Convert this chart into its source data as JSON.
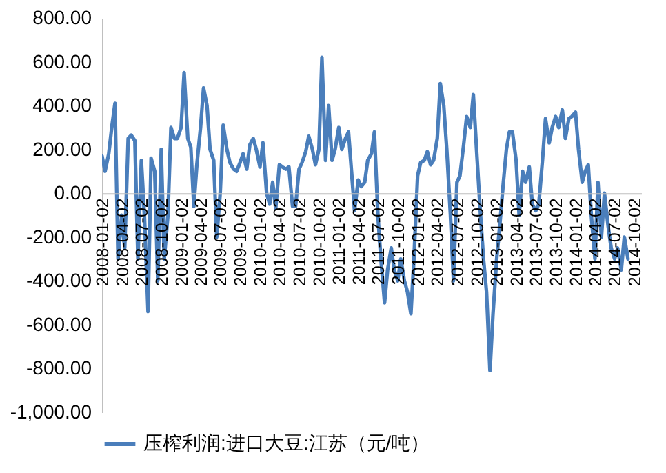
{
  "chart_data": {
    "type": "line",
    "legend": "bottom",
    "grid": false,
    "marker": "none",
    "line_style": "solid",
    "ylim": [
      -1000,
      800
    ],
    "yticks": [
      {
        "value": -1000,
        "label": "-1,000.00"
      },
      {
        "value": -800,
        "label": "-800.00"
      },
      {
        "value": -600,
        "label": "-600.00"
      },
      {
        "value": -400,
        "label": "-400.00"
      },
      {
        "value": -200,
        "label": "-200.00"
      },
      {
        "value": 0,
        "label": "0.00"
      },
      {
        "value": 200,
        "label": "200.00"
      },
      {
        "value": 400,
        "label": "400.00"
      },
      {
        "value": 600,
        "label": "600.00"
      },
      {
        "value": 800,
        "label": "800.00"
      }
    ],
    "xlim": [
      "2008-01-02",
      "2014-11-02"
    ],
    "xticks": [
      "2008-01-02",
      "2008-04-02",
      "2008-07-02",
      "2008-10-02",
      "2009-01-02",
      "2009-04-02",
      "2009-07-02",
      "2009-10-02",
      "2010-01-02",
      "2010-04-02",
      "2010-07-02",
      "2010-10-02",
      "2011-01-02",
      "2011-04-02",
      "2011-07-02",
      "2011-10-02",
      "2012-01-02",
      "2012-04-02",
      "2012-07-02",
      "2012-10-02",
      "2013-01-02",
      "2013-04-02",
      "2013-07-02",
      "2013-10-02",
      "2014-01-02",
      "2014-04-02",
      "2014-07-02",
      "2014-10-02"
    ],
    "x": [
      "2008-01-02",
      "2008-01-16",
      "2008-02-02",
      "2008-02-16",
      "2008-03-02",
      "2008-03-16",
      "2008-04-02",
      "2008-04-16",
      "2008-05-02",
      "2008-05-16",
      "2008-06-02",
      "2008-06-16",
      "2008-07-02",
      "2008-07-16",
      "2008-08-02",
      "2008-08-16",
      "2008-09-02",
      "2008-09-16",
      "2008-10-02",
      "2008-10-16",
      "2008-11-02",
      "2008-11-16",
      "2008-12-02",
      "2008-12-16",
      "2009-01-02",
      "2009-01-16",
      "2009-02-02",
      "2009-02-16",
      "2009-03-02",
      "2009-03-16",
      "2009-04-02",
      "2009-04-16",
      "2009-05-02",
      "2009-05-16",
      "2009-06-02",
      "2009-06-16",
      "2009-07-02",
      "2009-07-16",
      "2009-08-02",
      "2009-08-16",
      "2009-09-02",
      "2009-09-16",
      "2009-10-02",
      "2009-10-16",
      "2009-11-02",
      "2009-11-16",
      "2009-12-02",
      "2009-12-16",
      "2010-01-02",
      "2010-01-16",
      "2010-02-02",
      "2010-02-16",
      "2010-03-02",
      "2010-03-16",
      "2010-04-02",
      "2010-04-16",
      "2010-05-02",
      "2010-05-16",
      "2010-06-02",
      "2010-06-16",
      "2010-07-02",
      "2010-07-16",
      "2010-08-02",
      "2010-08-16",
      "2010-09-02",
      "2010-09-16",
      "2010-10-02",
      "2010-10-16",
      "2010-11-02",
      "2010-11-16",
      "2010-12-02",
      "2010-12-16",
      "2011-01-02",
      "2011-01-16",
      "2011-02-02",
      "2011-02-16",
      "2011-03-02",
      "2011-03-16",
      "2011-04-02",
      "2011-04-16",
      "2011-05-02",
      "2011-05-16",
      "2011-06-02",
      "2011-06-16",
      "2011-07-02",
      "2011-07-16",
      "2011-08-02",
      "2011-08-16",
      "2011-09-02",
      "2011-09-16",
      "2011-10-02",
      "2011-10-16",
      "2011-11-02",
      "2011-11-16",
      "2011-12-02",
      "2011-12-16",
      "2012-01-02",
      "2012-01-16",
      "2012-02-02",
      "2012-02-16",
      "2012-03-02",
      "2012-03-16",
      "2012-04-02",
      "2012-04-16",
      "2012-05-02",
      "2012-05-16",
      "2012-06-02",
      "2012-06-16",
      "2012-07-02",
      "2012-07-16",
      "2012-08-02",
      "2012-08-16",
      "2012-09-02",
      "2012-09-16",
      "2012-10-02",
      "2012-10-16",
      "2012-11-02",
      "2012-11-16",
      "2012-12-02",
      "2012-12-16",
      "2013-01-02",
      "2013-01-16",
      "2013-02-02",
      "2013-02-16",
      "2013-03-02",
      "2013-03-16",
      "2013-04-02",
      "2013-04-16",
      "2013-05-02",
      "2013-05-16",
      "2013-06-02",
      "2013-06-16",
      "2013-07-02",
      "2013-07-16",
      "2013-08-02",
      "2013-08-16",
      "2013-09-02",
      "2013-09-16",
      "2013-10-02",
      "2013-10-16",
      "2013-11-02",
      "2013-11-16",
      "2013-12-02",
      "2013-12-16",
      "2014-01-02",
      "2014-01-16",
      "2014-02-02",
      "2014-02-16",
      "2014-03-02",
      "2014-03-16",
      "2014-04-02",
      "2014-04-16",
      "2014-05-02",
      "2014-05-16",
      "2014-06-02",
      "2014-06-16",
      "2014-07-02",
      "2014-07-16",
      "2014-08-02",
      "2014-08-16",
      "2014-09-02"
    ],
    "series": [
      {
        "name": "压榨利润:进口大豆:江苏（元/吨）",
        "color": "#4a7ebb",
        "values": [
          170,
          100,
          180,
          300,
          410,
          -300,
          -100,
          -250,
          250,
          265,
          240,
          -300,
          150,
          -100,
          -540,
          160,
          100,
          -400,
          200,
          -300,
          -100,
          300,
          250,
          250,
          300,
          550,
          250,
          210,
          -60,
          130,
          300,
          480,
          400,
          200,
          150,
          -200,
          0,
          310,
          200,
          140,
          110,
          100,
          140,
          180,
          110,
          220,
          250,
          200,
          120,
          230,
          0,
          -50,
          50,
          -70,
          130,
          120,
          110,
          120,
          -60,
          -60,
          110,
          140,
          190,
          260,
          200,
          130,
          200,
          620,
          150,
          400,
          150,
          200,
          300,
          200,
          250,
          280,
          100,
          -80,
          60,
          30,
          50,
          150,
          180,
          280,
          -100,
          -300,
          -500,
          -350,
          -250,
          -350,
          -400,
          -300,
          -400,
          -450,
          -550,
          -300,
          80,
          140,
          150,
          190,
          130,
          150,
          250,
          500,
          400,
          200,
          -100,
          -400,
          50,
          80,
          220,
          350,
          300,
          450,
          180,
          -50,
          -300,
          -450,
          -810,
          -550,
          -300,
          -150,
          50,
          200,
          280,
          280,
          150,
          -100,
          100,
          50,
          120,
          -50,
          -80,
          -50,
          150,
          340,
          230,
          300,
          350,
          300,
          380,
          250,
          340,
          350,
          370,
          200,
          50,
          100,
          130,
          -100,
          -300,
          50,
          -200,
          0,
          -150,
          -250,
          -300,
          -250,
          -350,
          -200,
          -300
        ]
      }
    ]
  }
}
